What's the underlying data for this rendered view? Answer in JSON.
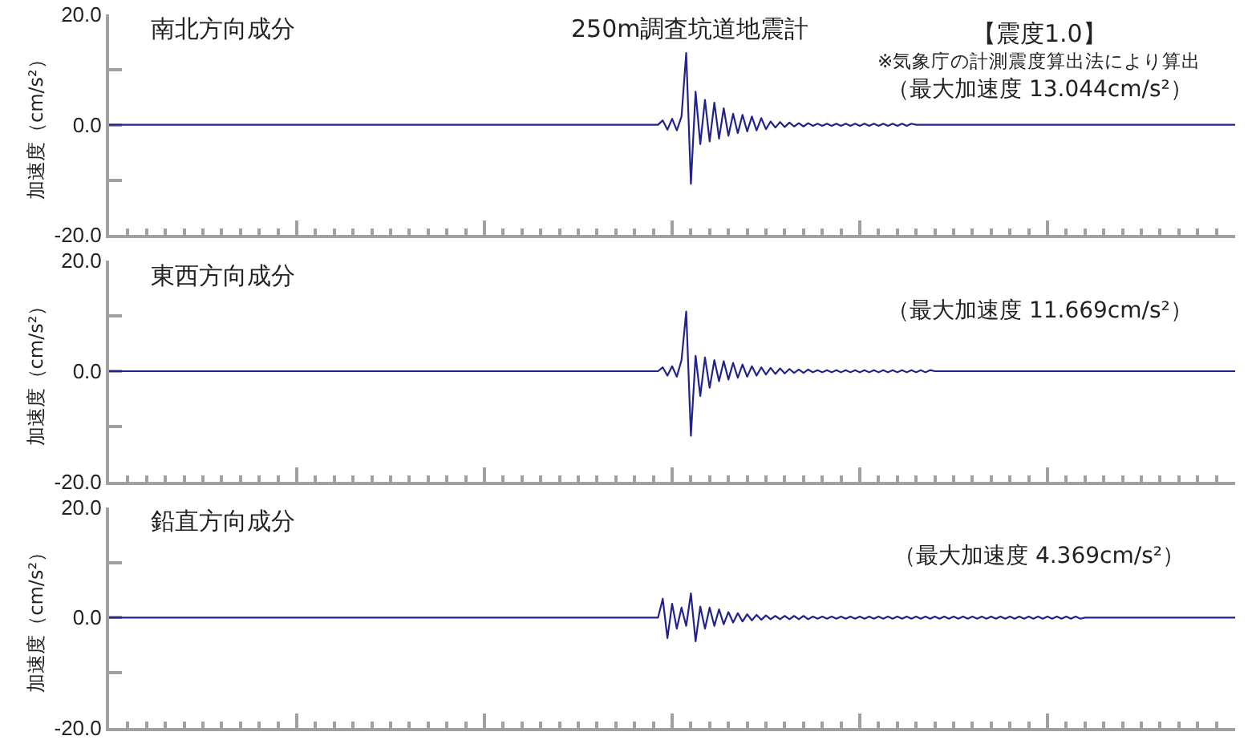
{
  "chart_data": [
    {
      "type": "line",
      "title": "南北方向成分",
      "ylabel": "加速度（cm/s²）",
      "annotations": [
        "250m調査坑道地震計",
        "【震度1.0】",
        "※気象庁の計測震度算出法により算出",
        "（最大加速度 13.044cm/s²）"
      ],
      "categories": [
        null,
        null,
        null,
        null,
        null,
        null,
        null,
        null,
        null,
        null,
        null,
        null,
        null,
        null,
        null,
        null,
        null,
        null,
        null,
        null,
        null,
        null,
        null,
        null,
        null,
        null,
        null,
        null,
        null,
        null,
        null,
        null,
        null,
        null,
        null,
        null,
        null,
        null,
        null,
        null,
        null,
        null,
        null,
        null,
        null,
        null,
        null,
        null,
        null,
        null,
        null,
        null,
        null,
        null,
        null,
        null,
        null,
        null,
        null,
        null,
        null,
        null,
        null,
        null,
        null,
        null,
        null,
        null,
        null,
        null,
        null,
        null,
        null,
        null,
        null,
        null,
        null,
        null,
        null,
        null,
        null,
        null,
        null,
        null,
        null,
        null,
        null,
        null,
        null,
        null,
        null,
        null,
        null,
        null,
        null,
        null,
        null,
        null,
        null,
        null,
        null,
        null,
        null,
        null,
        null,
        null,
        null,
        null,
        null,
        null,
        null,
        null,
        null,
        null,
        null,
        null,
        null,
        null,
        null,
        null,
        null,
        null,
        null,
        null,
        null,
        null,
        null,
        null,
        null,
        null,
        null,
        null,
        null,
        null,
        null,
        null,
        null,
        null,
        null,
        null,
        null,
        null,
        null,
        null,
        null,
        null,
        null,
        null,
        null,
        null,
        null,
        null,
        null,
        null,
        null,
        null,
        null,
        null,
        null,
        null,
        null,
        null,
        null,
        null,
        null,
        null,
        null,
        null,
        null,
        null,
        null,
        null,
        null,
        null,
        null,
        null,
        null,
        null,
        null,
        null,
        null,
        null,
        null,
        null,
        null,
        null,
        null,
        null,
        null,
        null,
        null,
        null,
        null,
        null,
        null,
        null,
        null,
        null,
        null,
        null,
        null,
        null,
        null,
        null,
        null,
        null,
        null,
        null,
        null,
        null,
        null,
        null,
        null,
        null,
        null,
        null,
        null,
        null,
        null,
        null,
        null,
        null,
        null,
        null,
        null,
        null,
        null,
        null,
        null,
        null,
        null,
        null,
        null,
        null,
        null,
        null,
        null,
        null,
        null,
        null,
        null
      ],
      "series": [
        {
          "color": "#22228c",
          "values": [
            0,
            0,
            0,
            0,
            0,
            0,
            0,
            0,
            0,
            0,
            0,
            0,
            0,
            0,
            0,
            0,
            0,
            0,
            0,
            0,
            0,
            0,
            0,
            0,
            0,
            0,
            0,
            0,
            0,
            0,
            0,
            0,
            0,
            0,
            0,
            0,
            0,
            0,
            0,
            0,
            0,
            0,
            0,
            0,
            0,
            0,
            0,
            0,
            0,
            0,
            0,
            0,
            0,
            0,
            0,
            0,
            0,
            0,
            0,
            0,
            0,
            0,
            0,
            0,
            0,
            0,
            0,
            0,
            0,
            0,
            0,
            0,
            0,
            0,
            0,
            0,
            0,
            0,
            0,
            0,
            0,
            0,
            0,
            0,
            0,
            0,
            0,
            0,
            0,
            0,
            0,
            0,
            0,
            0,
            0,
            0,
            0,
            0,
            0,
            0,
            0,
            0,
            0,
            0,
            0,
            0,
            0,
            0,
            0,
            0,
            0,
            0,
            0,
            0,
            0,
            0,
            0,
            0,
            0.8,
            -0.9,
            1.1,
            -1.0,
            1.5,
            13.0,
            -10.7,
            6.0,
            -3.5,
            4.5,
            -3.0,
            4.0,
            -2.5,
            3.0,
            -2.0,
            2.0,
            -1.5,
            1.8,
            -1.2,
            1.5,
            -1.0,
            1.2,
            -0.8,
            0.6,
            -0.5,
            0.5,
            -0.4,
            0.4,
            -0.3,
            0.3,
            -0.3,
            0.3,
            -0.2,
            0.2,
            -0.2,
            0.2,
            -0.2,
            0.2,
            -0.2,
            0.2,
            -0.2,
            0.2,
            -0.2,
            0.2,
            -0.2,
            0.2,
            -0.2,
            0.2,
            -0.2,
            0.2,
            -0.2,
            0.2,
            -0.2,
            0.2,
            0,
            0,
            0,
            0,
            0,
            0,
            0,
            0,
            0,
            0,
            0,
            0,
            0,
            0,
            0,
            0,
            0,
            0,
            0,
            0,
            0,
            0,
            0,
            0,
            0,
            0,
            0,
            0,
            0,
            0,
            0,
            0,
            0,
            0,
            0,
            0,
            0,
            0,
            0,
            0,
            0,
            0,
            0,
            0,
            0,
            0,
            0,
            0,
            0,
            0,
            0,
            0,
            0,
            0,
            0,
            0,
            0,
            0,
            0,
            0,
            0,
            0,
            0,
            0,
            0,
            0,
            0,
            0,
            0
          ]
        }
      ],
      "ylim": [
        -20,
        20
      ],
      "yticks": [
        {
          "value": -20,
          "label": "-20.0"
        },
        {
          "value": -10,
          "label": null
        },
        {
          "value": 0,
          "label": "0.0"
        },
        {
          "value": 10,
          "label": null
        },
        {
          "value": 20,
          "label": "20.0"
        }
      ],
      "tick_labels": "y"
    },
    {
      "type": "line",
      "title": "東西方向成分",
      "ylabel": "加速度（cm/s²）",
      "annotations": [
        "（最大加速度 11.669cm/s²）"
      ],
      "categories": [
        null,
        null,
        null,
        null,
        null,
        null,
        null,
        null,
        null,
        null,
        null,
        null,
        null,
        null,
        null,
        null,
        null,
        null,
        null,
        null,
        null,
        null,
        null,
        null,
        null,
        null,
        null,
        null,
        null,
        null,
        null,
        null,
        null,
        null,
        null,
        null,
        null,
        null,
        null,
        null,
        null,
        null,
        null,
        null,
        null,
        null,
        null,
        null,
        null,
        null,
        null,
        null,
        null,
        null,
        null,
        null,
        null,
        null,
        null,
        null,
        null,
        null,
        null,
        null,
        null,
        null,
        null,
        null,
        null,
        null,
        null,
        null,
        null,
        null,
        null,
        null,
        null,
        null,
        null,
        null,
        null,
        null,
        null,
        null,
        null,
        null,
        null,
        null,
        null,
        null,
        null,
        null,
        null,
        null,
        null,
        null,
        null,
        null,
        null,
        null,
        null,
        null,
        null,
        null,
        null,
        null,
        null,
        null,
        null,
        null,
        null,
        null,
        null,
        null,
        null,
        null,
        null,
        null,
        null,
        null,
        null,
        null,
        null,
        null,
        null,
        null,
        null,
        null,
        null,
        null,
        null,
        null,
        null,
        null,
        null,
        null,
        null,
        null,
        null,
        null,
        null,
        null,
        null,
        null,
        null,
        null,
        null,
        null,
        null,
        null,
        null,
        null,
        null,
        null,
        null,
        null,
        null,
        null,
        null,
        null,
        null,
        null,
        null,
        null,
        null,
        null,
        null,
        null,
        null,
        null,
        null,
        null,
        null,
        null,
        null,
        null,
        null,
        null,
        null,
        null,
        null,
        null,
        null,
        null,
        null,
        null,
        null,
        null,
        null,
        null,
        null,
        null,
        null,
        null,
        null,
        null,
        null,
        null,
        null,
        null,
        null,
        null,
        null,
        null,
        null,
        null,
        null,
        null,
        null,
        null,
        null,
        null,
        null,
        null,
        null,
        null,
        null,
        null,
        null,
        null,
        null,
        null,
        null,
        null,
        null,
        null,
        null,
        null,
        null,
        null,
        null,
        null,
        null,
        null,
        null,
        null,
        null,
        null,
        null,
        null,
        null
      ],
      "series": [
        {
          "color": "#22228c",
          "values": [
            0,
            0,
            0,
            0,
            0,
            0,
            0,
            0,
            0,
            0,
            0,
            0,
            0,
            0,
            0,
            0,
            0,
            0,
            0,
            0,
            0,
            0,
            0,
            0,
            0,
            0,
            0,
            0,
            0,
            0,
            0,
            0,
            0,
            0,
            0,
            0,
            0,
            0,
            0,
            0,
            0,
            0,
            0,
            0,
            0,
            0,
            0,
            0,
            0,
            0,
            0,
            0,
            0,
            0,
            0,
            0,
            0,
            0,
            0,
            0,
            0,
            0,
            0,
            0,
            0,
            0,
            0,
            0,
            0,
            0,
            0,
            0,
            0,
            0,
            0,
            0,
            0,
            0,
            0,
            0,
            0,
            0,
            0,
            0,
            0,
            0,
            0,
            0,
            0,
            0,
            0,
            0,
            0,
            0,
            0,
            0,
            0,
            0,
            0,
            0,
            0,
            0,
            0,
            0,
            0,
            0,
            0,
            0,
            0,
            0,
            0,
            0,
            0,
            0,
            0,
            0,
            0,
            0,
            0.7,
            -0.8,
            0.9,
            -1.0,
            2.0,
            10.8,
            -11.7,
            2.8,
            -4.5,
            2.5,
            -3.0,
            2.0,
            -1.8,
            1.8,
            -1.5,
            1.5,
            -1.2,
            1.2,
            -1.0,
            0.9,
            -0.8,
            0.7,
            -0.6,
            0.6,
            -0.5,
            0.5,
            -0.4,
            0.4,
            -0.3,
            0.3,
            -0.3,
            0.3,
            -0.2,
            0.2,
            -0.2,
            0.2,
            -0.2,
            0.2,
            -0.2,
            0.2,
            -0.2,
            0.2,
            -0.2,
            0.2,
            -0.2,
            0.2,
            -0.2,
            0.2,
            -0.2,
            0.2,
            -0.2,
            0.2,
            -0.2,
            0.2,
            -0.2,
            0.2,
            -0.2,
            0.2,
            0,
            0,
            0,
            0,
            0,
            0,
            0,
            0,
            0,
            0,
            0,
            0,
            0,
            0,
            0,
            0,
            0,
            0,
            0,
            0,
            0,
            0,
            0,
            0,
            0,
            0,
            0,
            0,
            0,
            0,
            0,
            0,
            0,
            0,
            0,
            0,
            0,
            0,
            0,
            0,
            0,
            0,
            0,
            0,
            0,
            0,
            0,
            0,
            0,
            0,
            0,
            0,
            0,
            0,
            0,
            0,
            0,
            0,
            0,
            0,
            0,
            0,
            0,
            0,
            0
          ]
        }
      ],
      "ylim": [
        -20,
        20
      ],
      "yticks": [
        {
          "value": -20,
          "label": "-20.0"
        },
        {
          "value": -10,
          "label": null
        },
        {
          "value": 0,
          "label": "0.0"
        },
        {
          "value": 10,
          "label": null
        },
        {
          "value": 20,
          "label": "20.0"
        }
      ],
      "tick_labels": "y"
    },
    {
      "type": "line",
      "title": "鉛直方向成分",
      "ylabel": "加速度（cm/s²）",
      "annotations": [
        "（最大加速度 4.369cm/s²）"
      ],
      "categories": [
        null,
        null,
        null,
        null,
        null,
        null,
        null,
        null,
        null,
        null,
        null,
        null,
        null,
        null,
        null,
        null,
        null,
        null,
        null,
        null,
        null,
        null,
        null,
        null,
        null,
        null,
        null,
        null,
        null,
        null,
        null,
        null,
        null,
        null,
        null,
        null,
        null,
        null,
        null,
        null,
        null,
        null,
        null,
        null,
        null,
        null,
        null,
        null,
        null,
        null,
        null,
        null,
        null,
        null,
        null,
        null,
        null,
        null,
        null,
        null,
        null,
        null,
        null,
        null,
        null,
        null,
        null,
        null,
        null,
        null,
        null,
        null,
        null,
        null,
        null,
        null,
        null,
        null,
        null,
        null,
        null,
        null,
        null,
        null,
        null,
        null,
        null,
        null,
        null,
        null,
        null,
        null,
        null,
        null,
        null,
        null,
        null,
        null,
        null,
        null,
        null,
        null,
        null,
        null,
        null,
        null,
        null,
        null,
        null,
        null,
        null,
        null,
        null,
        null,
        null,
        null,
        null,
        null,
        null,
        null,
        null,
        null,
        null,
        null,
        null,
        null,
        null,
        null,
        null,
        null,
        null,
        null,
        null,
        null,
        null,
        null,
        null,
        null,
        null,
        null,
        null,
        null,
        null,
        null,
        null,
        null,
        null,
        null,
        null,
        null,
        null,
        null,
        null,
        null,
        null,
        null,
        null,
        null,
        null,
        null,
        null,
        null,
        null,
        null,
        null,
        null,
        null,
        null,
        null,
        null,
        null,
        null,
        null,
        null,
        null,
        null,
        null,
        null,
        null,
        null,
        null,
        null,
        null,
        null,
        null,
        null,
        null,
        null,
        null,
        null,
        null,
        null,
        null,
        null,
        null,
        null,
        null,
        null,
        null,
        null,
        null,
        null,
        null,
        null,
        null,
        null,
        null,
        null,
        null,
        null,
        null,
        null,
        null,
        null,
        null,
        null,
        null,
        null,
        null,
        null,
        null,
        null,
        null,
        null,
        null,
        null,
        null,
        null,
        null,
        null,
        null,
        null,
        null,
        null,
        null,
        null,
        null,
        null,
        null,
        null,
        null
      ],
      "series": [
        {
          "color": "#22228c",
          "values": [
            0,
            0,
            0,
            0,
            0,
            0,
            0,
            0,
            0,
            0,
            0,
            0,
            0,
            0,
            0,
            0,
            0,
            0,
            0,
            0,
            0,
            0,
            0,
            0,
            0,
            0,
            0,
            0,
            0,
            0,
            0,
            0,
            0,
            0,
            0,
            0,
            0,
            0,
            0,
            0,
            0,
            0,
            0,
            0,
            0,
            0,
            0,
            0,
            0,
            0,
            0,
            0,
            0,
            0,
            0,
            0,
            0,
            0,
            0,
            0,
            0,
            0,
            0,
            0,
            0,
            0,
            0,
            0,
            0,
            0,
            0,
            0,
            0,
            0,
            0,
            0,
            0,
            0,
            0,
            0,
            0,
            0,
            0,
            0,
            0,
            0,
            0,
            0,
            0,
            0,
            0,
            0,
            0,
            0,
            0,
            0,
            0,
            0,
            0,
            0,
            0,
            0,
            0,
            0,
            0,
            0,
            0,
            0,
            0,
            0,
            0,
            0,
            0,
            0,
            0,
            0,
            0,
            0,
            3.4,
            -3.7,
            2.5,
            -2.0,
            1.8,
            -1.5,
            4.4,
            -4.3,
            2.0,
            -2.0,
            1.8,
            -1.5,
            1.5,
            -1.2,
            1.0,
            -0.9,
            0.8,
            -0.7,
            0.6,
            -0.5,
            0.5,
            -0.4,
            0.4,
            -0.3,
            0.3,
            -0.3,
            0.3,
            -0.3,
            0.3,
            -0.3,
            0.3,
            -0.3,
            0.2,
            -0.2,
            0.2,
            -0.2,
            0.2,
            -0.2,
            0.2,
            -0.2,
            0.2,
            -0.2,
            0.2,
            -0.2,
            0.2,
            -0.2,
            0.2,
            -0.2,
            0.2,
            -0.2,
            0.2,
            -0.2,
            0.2,
            -0.2,
            0.2,
            -0.2,
            0.2,
            -0.2,
            0.2,
            -0.2,
            0.2,
            -0.2,
            0.2,
            -0.2,
            0.2,
            -0.2,
            0.2,
            -0.2,
            0.2,
            -0.2,
            0.2,
            -0.2,
            0.2,
            -0.2,
            0.2,
            -0.2,
            0.2,
            -0.2,
            0.2,
            -0.2,
            0.2,
            -0.2,
            0.2,
            -0.2,
            0.2,
            -0.2,
            0.2,
            -0.2,
            0.2,
            -0.2,
            0,
            0,
            0,
            0,
            0,
            0,
            0,
            0,
            0,
            0,
            0,
            0,
            0,
            0,
            0,
            0,
            0,
            0,
            0,
            0,
            0,
            0,
            0,
            0,
            0,
            0,
            0,
            0,
            0,
            0,
            0,
            0,
            0
          ]
        }
      ],
      "ylim": [
        -20,
        20
      ],
      "yticks": [
        {
          "value": -20,
          "label": "-20.0"
        },
        {
          "value": -10,
          "label": null
        },
        {
          "value": 0,
          "label": "0.0"
        },
        {
          "value": 10,
          "label": null
        },
        {
          "value": 20,
          "label": "20.0"
        }
      ],
      "tick_labels": "y"
    }
  ]
}
